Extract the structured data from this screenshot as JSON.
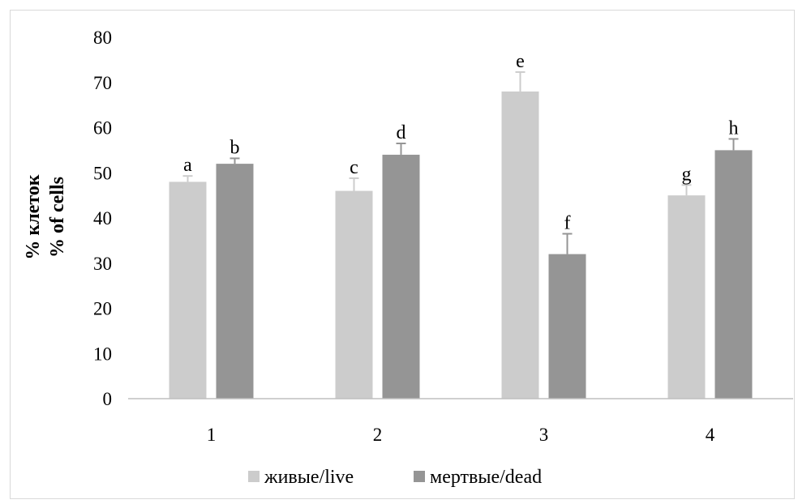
{
  "chart_data": {
    "type": "bar",
    "categories": [
      "1",
      "2",
      "3",
      "4"
    ],
    "series": [
      {
        "name": "живые/live",
        "color": "#cccccc",
        "values": [
          48,
          46,
          68,
          45
        ],
        "errors": [
          1.3,
          2.8,
          4.3,
          2.3
        ],
        "letters": [
          "a",
          "c",
          "e",
          "g"
        ]
      },
      {
        "name": "мертвые/dead",
        "color": "#959595",
        "values": [
          52,
          54,
          32,
          55
        ],
        "errors": [
          1.2,
          2.5,
          4.5,
          2.5
        ],
        "letters": [
          "b",
          "d",
          "f",
          "h"
        ]
      }
    ],
    "ylabel_lines": [
      "% клеток",
      "% of cells"
    ],
    "xlabel": "",
    "title": "",
    "ylim": [
      0,
      80
    ],
    "yticks": [
      0,
      10,
      20,
      30,
      40,
      50,
      60,
      70,
      80
    ],
    "grid": false,
    "legend_position": "bottom"
  }
}
